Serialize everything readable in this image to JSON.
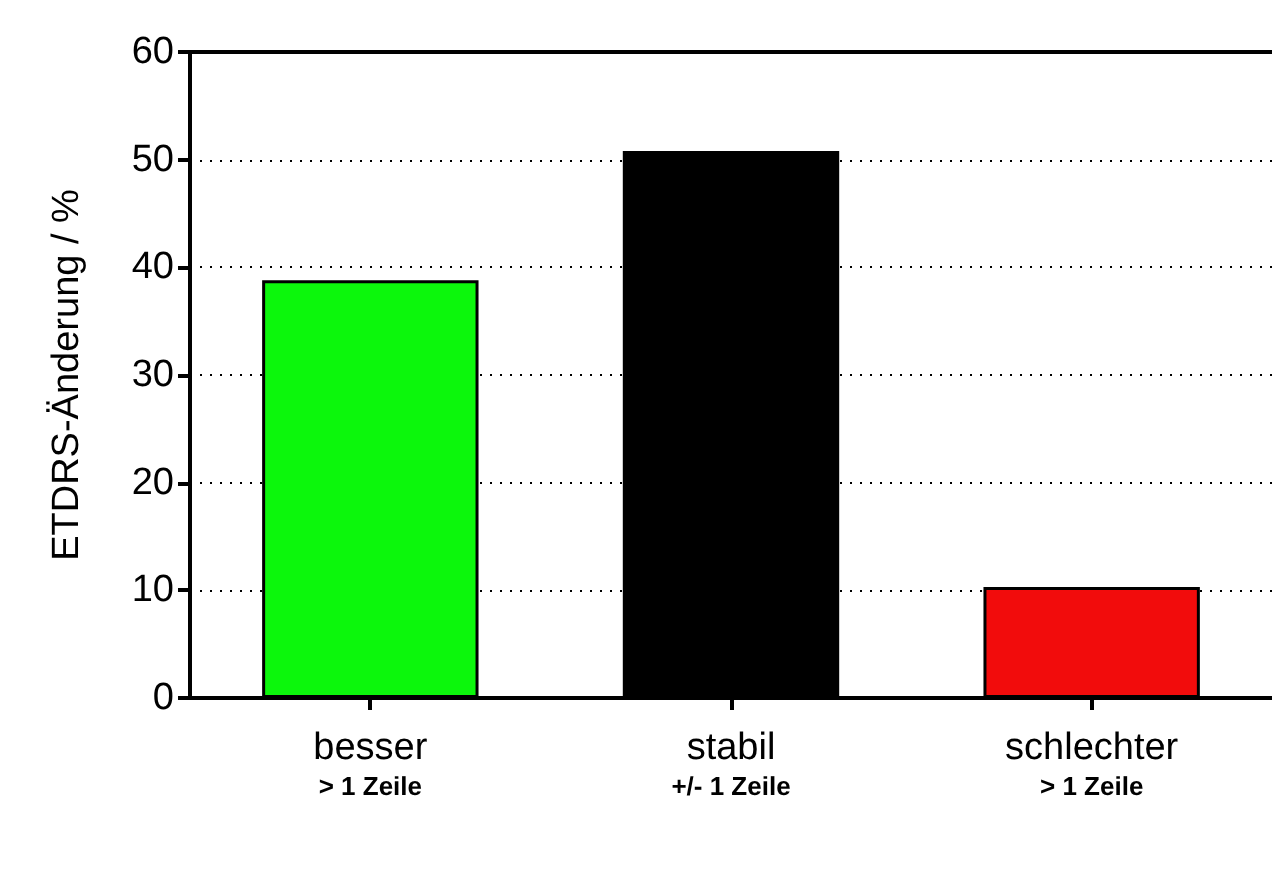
{
  "chart_data": {
    "type": "bar",
    "ylabel": "ETDRS-Änderung / %",
    "categories": [
      "besser\n> 1 Zeile",
      "stabil\n+/- 1 Zeile",
      "schlechter\n> 1 Zeile"
    ],
    "values": [
      38.8,
      50.8,
      10.3
    ],
    "colors": [
      "#0cf70c",
      "#000000",
      "#f20c0c"
    ],
    "ylim": [
      0,
      60
    ],
    "yticks": [
      0,
      10,
      20,
      30,
      40,
      50,
      60
    ],
    "grid": "y"
  }
}
